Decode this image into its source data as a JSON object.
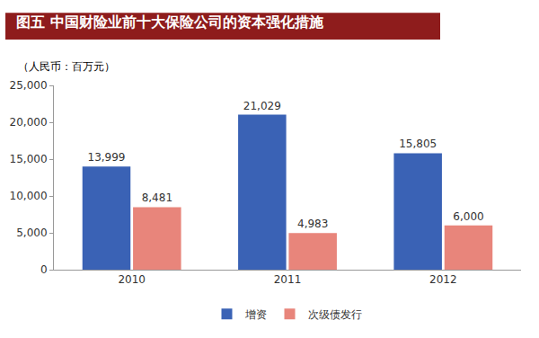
{
  "chart_data": {
    "type": "bar",
    "title": "图五 中国财险业前十大保险公司的资本强化措施",
    "annotations": [
      "（人民币：百万元）"
    ],
    "categories": [
      "2010",
      "2011",
      "2012"
    ],
    "series": [
      {
        "name": "增资",
        "color": "#3a62b5",
        "values": [
          13999,
          21029,
          15805
        ],
        "value_labels": [
          "13,999",
          "21,029",
          "15,805"
        ]
      },
      {
        "name": "次级债发行",
        "color": "#e8857b",
        "values": [
          8481,
          4983,
          6000
        ],
        "value_labels": [
          "8,481",
          "4,983",
          "6,000"
        ]
      }
    ],
    "ylim": [
      0,
      25000
    ],
    "yticks": [
      0,
      {
        "value": 5000,
        "label": "5,000"
      },
      {
        "value": 10000,
        "label": "10,000"
      },
      {
        "value": 15000,
        "label": "15,000"
      },
      {
        "value": 20000,
        "label": "20,000"
      },
      {
        "value": 25000,
        "label": "25,000"
      }
    ],
    "grid": false,
    "legend": "bottom",
    "data_labels": true
  }
}
